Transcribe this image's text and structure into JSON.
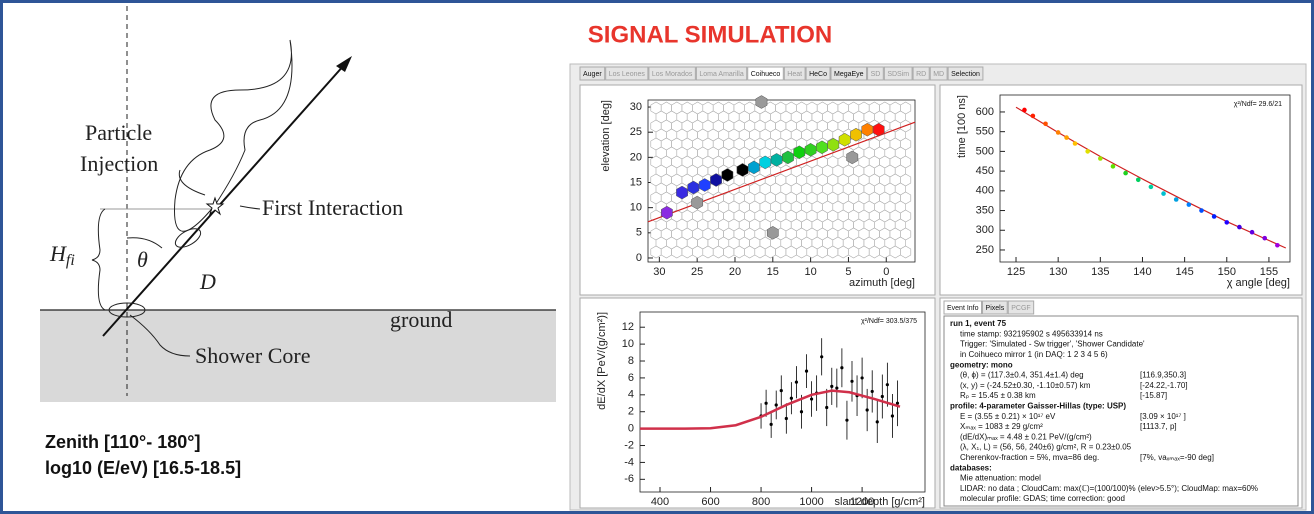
{
  "slide": {
    "title": "SIGNAL SIMULATION",
    "diagram": {
      "particle": "Particle",
      "injection": "Injection",
      "first_interaction": "First Interaction",
      "h_label": "H",
      "h_sub": "fi",
      "theta": "θ",
      "d_label": "D",
      "ground": "ground",
      "shower_core": "Shower Core"
    },
    "ranges": [
      "Zenith [110°- 180°]",
      "log10 (E/eV) [16.5-18.5]"
    ]
  },
  "tabs": [
    "Auger",
    "Los Leones",
    "Los Morados",
    "Loma Amarilla",
    "Coihueco",
    "Heat",
    "HeCo",
    "MegaEye",
    "SD",
    "SDSim",
    "RD",
    "MD",
    "Selection"
  ],
  "chart_data": [
    {
      "type": "scatter",
      "marker": "hexagon",
      "ylabel": "elevation  [deg]",
      "xlabel": "azimuth  [deg]",
      "xlim": [
        31.5,
        -3.8
      ],
      "ylim": [
        -0.8,
        31.4
      ],
      "xticks": [
        30,
        25,
        20,
        15,
        10,
        5,
        0
      ],
      "yticks": [
        0,
        5,
        10,
        15,
        20,
        25,
        30
      ],
      "x": [
        29,
        27,
        25.5,
        24,
        22.5,
        21,
        19,
        17.5,
        16,
        14.5,
        13,
        11.5,
        10,
        8.5,
        7,
        5.5,
        4,
        2.5,
        1,
        16.5,
        4.5,
        25,
        15
      ],
      "values": [
        9,
        13,
        14,
        14.5,
        15.5,
        16.5,
        17.5,
        18,
        19,
        19.5,
        20,
        21,
        21.5,
        22,
        22.5,
        23.5,
        24.5,
        25.5,
        25.5,
        31,
        20,
        11,
        5
      ],
      "colors": [
        "#8a2be2",
        "#3a2be2",
        "#2b30e0",
        "#2040ff",
        "#1010a0",
        "#000000",
        "#000000",
        "#00a0d0",
        "#00d0e0",
        "#00b0a0",
        "#20c040",
        "#10d010",
        "#30d020",
        "#50e020",
        "#90e010",
        "#d0e000",
        "#f0c000",
        "#ff8000",
        "#ff1010",
        "#999999",
        "#999999",
        "#999999",
        "#999999"
      ],
      "fit_x": [
        31.5,
        -3.8
      ],
      "fit_values": [
        7.2,
        27
      ],
      "fit_color": "#d02020"
    },
    {
      "type": "scatter",
      "marker": "circle",
      "ylabel": "time [100 ns]",
      "xlabel": "χ angle [deg]",
      "annotation": "χ²/Ndf=   29.6/21",
      "xlim": [
        123.1,
        157.5
      ],
      "ylim": [
        219.5,
        643
      ],
      "xticks": [
        125,
        130,
        135,
        140,
        145,
        150,
        155
      ],
      "yticks": [
        250,
        300,
        350,
        400,
        450,
        500,
        550,
        600
      ],
      "x": [
        126,
        127,
        128.5,
        130,
        131,
        132,
        133.5,
        135,
        136.5,
        138,
        139.5,
        141,
        142.5,
        144,
        145.5,
        147,
        148.5,
        150,
        151.5,
        153,
        154.5,
        156
      ],
      "values": [
        605,
        590,
        570,
        548,
        535,
        520,
        500,
        482,
        462,
        445,
        428,
        410,
        393,
        378,
        365,
        350,
        335,
        320,
        308,
        295,
        280,
        262
      ],
      "colors": [
        "#ff0000",
        "#ff2000",
        "#ff5000",
        "#ff8000",
        "#ffa000",
        "#ffc000",
        "#e0e000",
        "#a0e000",
        "#60e000",
        "#20d020",
        "#00d060",
        "#00d0a0",
        "#00c0d0",
        "#00a0e0",
        "#0080ff",
        "#0050ff",
        "#0020ff",
        "#2000ff",
        "#4000e0",
        "#6000e0",
        "#8000e0",
        "#a000e0"
      ],
      "fit_x": [
        125,
        130,
        135,
        140,
        145,
        150,
        157
      ],
      "fit_values": [
        612,
        548,
        487,
        430,
        375,
        322,
        255
      ],
      "fit_color": "#d02020"
    },
    {
      "type": "scatter",
      "marker": "dot",
      "ylabel": "dE/dX [PeV/(g/cm²)]",
      "xlabel": "slant depth [g/cm²]",
      "annotation": "χ²/Ndf=   303.5/375",
      "xlim": [
        320.8,
        1449
      ],
      "ylim": [
        -7.5,
        13.8
      ],
      "xticks": [
        400,
        600,
        800,
        1000,
        1200
      ],
      "yticks": [
        -6,
        -4,
        -2,
        0,
        2,
        4,
        6,
        8,
        10,
        12
      ],
      "x": [
        800,
        820,
        840,
        860,
        880,
        900,
        920,
        940,
        960,
        980,
        1000,
        1020,
        1040,
        1060,
        1080,
        1100,
        1120,
        1140,
        1160,
        1180,
        1200,
        1220,
        1240,
        1260,
        1280,
        1300,
        1320,
        1340
      ],
      "values": [
        1.5,
        3.0,
        0.5,
        2.8,
        4.5,
        1.2,
        3.6,
        5.5,
        2.0,
        6.8,
        3.5,
        4.2,
        8.5,
        2.5,
        5.0,
        4.8,
        7.2,
        1.0,
        5.6,
        3.9,
        6.0,
        2.2,
        4.4,
        0.8,
        3.8,
        5.2,
        1.5,
        3.0
      ],
      "errors": [
        1.5,
        1.6,
        1.6,
        1.7,
        1.8,
        1.8,
        1.9,
        1.9,
        2.0,
        2.0,
        2.1,
        2.1,
        2.2,
        2.2,
        2.2,
        2.3,
        2.3,
        2.3,
        2.4,
        2.4,
        2.4,
        2.5,
        2.5,
        2.5,
        2.6,
        2.6,
        2.6,
        2.7
      ],
      "color": "#000000",
      "fit_x": [
        320.8,
        500,
        600,
        700,
        800,
        900,
        1000,
        1080,
        1150,
        1250,
        1350
      ],
      "fit_values": [
        0,
        0,
        0.05,
        0.4,
        1.4,
        2.8,
        4.0,
        4.5,
        4.3,
        3.5,
        2.6
      ],
      "fit_color": "#d0304a"
    }
  ],
  "event_info": {
    "tabs": [
      "Event Info",
      "Pixels",
      "PCGF"
    ],
    "lines": [
      {
        "text": "run 1, event 75",
        "style": "heading"
      },
      {
        "text": "time stamp: 932195902 s 495633914 ns"
      },
      {
        "text": "Trigger: 'Simulated - Sw trigger', 'Shower Candidate'"
      },
      {
        "text": "in Coihueco mirror 1 (in DAQ:  1 2 3 4 5 6)"
      },
      {
        "text": "geometry: mono",
        "style": "heading"
      },
      {
        "text": "(θ, ϕ) = (117.3±0.4, 351.4±1.4) deg",
        "note": "[116.9,350.3]"
      },
      {
        "text": "(x, y) = (-24.52±0.30, -1.10±0.57) km",
        "note": "[-24.22,-1.70]"
      },
      {
        "text": "Rₚ = 15.45 ± 0.38 km",
        "note": "[-15.87]"
      },
      {
        "text": "profile: 4-parameter Gaisser-Hillas (type: USP)",
        "style": "heading"
      },
      {
        "text": "E = (3.55 ± 0.21) × 10¹⁷ eV",
        "note": "[3.09 × 10¹⁷ ]"
      },
      {
        "text": "Xₘₐₓ = 1083 ± 29 g/cm²",
        "note": "[1113.7, p]"
      },
      {
        "text": "(dE/dX)ₘₐₓ = 4.48 ± 0.21 PeV/(g/cm²)"
      },
      {
        "text": "(λ, X₁, L) = (56, 56, 240±6) g/cm², R = 0.23±0.05"
      },
      {
        "text": "Cherenkov-fraction = 5%, mva=86 deg.",
        "note": "[7%, vaₓₘₐₓ=-90 deg]"
      },
      {
        "text": "databases:",
        "style": "heading"
      },
      {
        "text": "Mie attenuation: model"
      },
      {
        "text": "LIDAR: no data ; CloudCam: max(ℂ)=(100/100)% (elev>5.5°); CloudMap: max=60%"
      },
      {
        "text": "molecular profile: GDAS; time correction: good"
      }
    ]
  }
}
